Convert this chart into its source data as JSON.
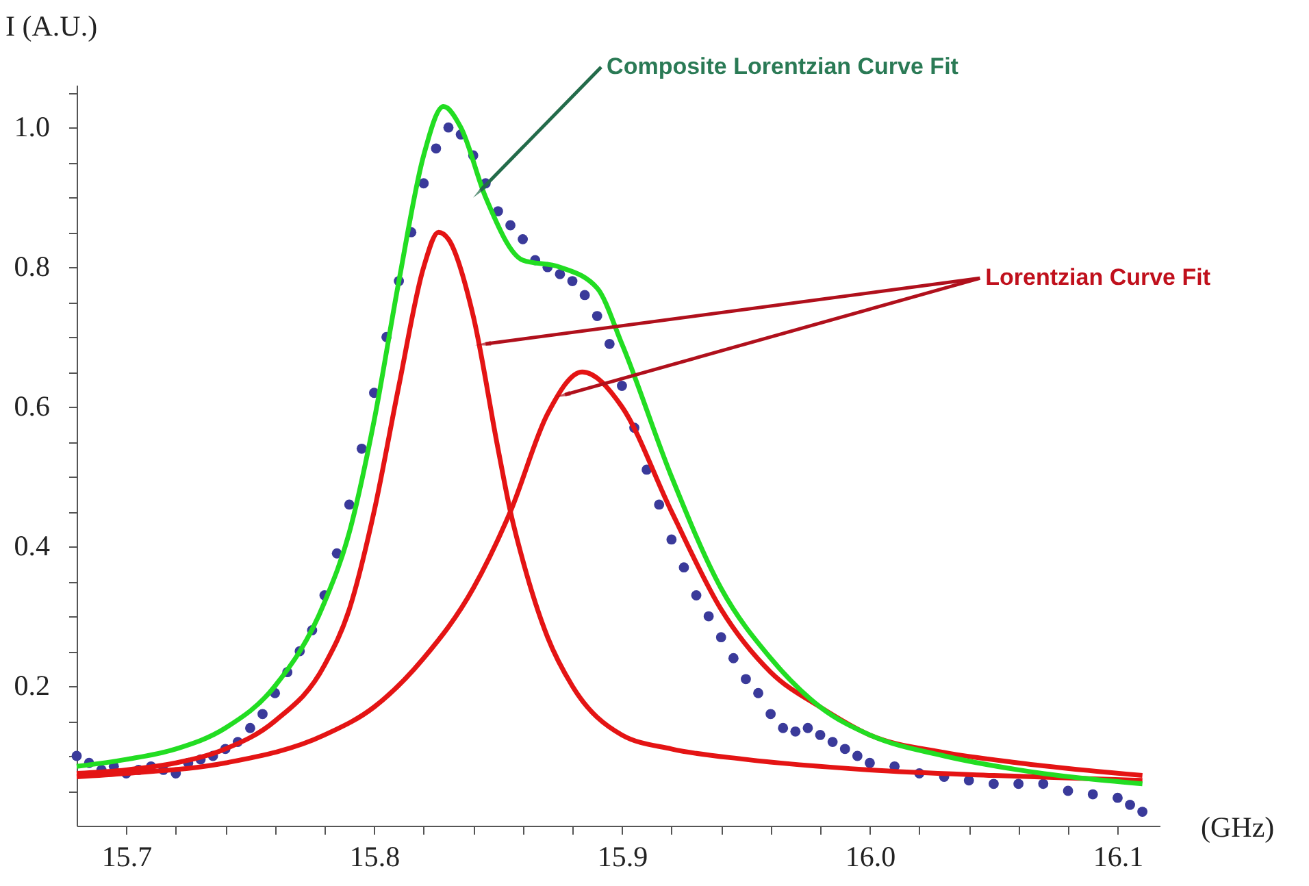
{
  "chart_data": {
    "type": "scatter",
    "ylabel": "I (A.U.)",
    "xlabel": "(GHz)",
    "xlim": [
      15.68,
      16.117
    ],
    "ylim": [
      0,
      1.061
    ],
    "xticks": [
      {
        "value": 15.7,
        "label": "15.7"
      },
      {
        "value": 15.72,
        "label": null
      },
      {
        "value": 15.74,
        "label": null
      },
      {
        "value": 15.76,
        "label": null
      },
      {
        "value": 15.78,
        "label": null
      },
      {
        "value": 15.8,
        "label": "15.8"
      },
      {
        "value": 15.82,
        "label": null
      },
      {
        "value": 15.84,
        "label": null
      },
      {
        "value": 15.86,
        "label": null
      },
      {
        "value": 15.88,
        "label": null
      },
      {
        "value": 15.9,
        "label": "15.9"
      },
      {
        "value": 15.92,
        "label": null
      },
      {
        "value": 15.94,
        "label": null
      },
      {
        "value": 15.96,
        "label": null
      },
      {
        "value": 15.98,
        "label": null
      },
      {
        "value": 16,
        "label": "16.0"
      },
      {
        "value": 16.02,
        "label": null
      },
      {
        "value": 16.04,
        "label": null
      },
      {
        "value": 16.06,
        "label": null
      },
      {
        "value": 16.08,
        "label": null
      },
      {
        "value": 16.1,
        "label": "16.1"
      }
    ],
    "yticks": [
      {
        "value": 0.05,
        "label": null
      },
      {
        "value": 0.1,
        "label": null
      },
      {
        "value": 0.15,
        "label": null
      },
      0.2,
      {
        "value": 0.25,
        "label": null
      },
      {
        "value": 0.3,
        "label": null
      },
      {
        "value": 0.35,
        "label": null
      },
      0.4,
      {
        "value": 0.45,
        "label": null
      },
      {
        "value": 0.5,
        "label": null
      },
      {
        "value": 0.55,
        "label": null
      },
      0.6,
      {
        "value": 0.65,
        "label": null
      },
      {
        "value": 0.7,
        "label": null
      },
      {
        "value": 0.75,
        "label": null
      },
      0.8,
      {
        "value": 0.85,
        "label": null
      },
      {
        "value": 0.9,
        "label": null
      },
      {
        "value": 0.95,
        "label": null
      },
      {
        "value": 1,
        "label": "1.0"
      },
      {
        "value": 1.05,
        "label": null
      }
    ],
    "grid": false,
    "series": [
      {
        "type": "scatter",
        "marker": "circle",
        "color": "#3a3a9a",
        "x": [
          15.68,
          15.685,
          15.69,
          15.695,
          15.7,
          15.705,
          15.71,
          15.715,
          15.72,
          15.725,
          15.73,
          15.735,
          15.74,
          15.745,
          15.75,
          15.755,
          15.76,
          15.765,
          15.77,
          15.775,
          15.78,
          15.785,
          15.79,
          15.795,
          15.8,
          15.805,
          15.81,
          15.815,
          15.82,
          15.825,
          15.83,
          15.835,
          15.84,
          15.845,
          15.85,
          15.855,
          15.86,
          15.865,
          15.87,
          15.875,
          15.88,
          15.885,
          15.89,
          15.895,
          15.9,
          15.905,
          15.91,
          15.915,
          15.92,
          15.925,
          15.93,
          15.935,
          15.94,
          15.945,
          15.95,
          15.955,
          15.96,
          15.965,
          15.97,
          15.975,
          15.98,
          15.985,
          15.99,
          15.995,
          16,
          16.01,
          16.02,
          16.03,
          16.04,
          16.05,
          16.06,
          16.07,
          16.08,
          16.09,
          16.1,
          16.105,
          16.11
        ],
        "values": [
          0.1,
          0.09,
          0.08,
          0.085,
          0.075,
          0.08,
          0.085,
          0.08,
          0.075,
          0.09,
          0.095,
          0.1,
          0.11,
          0.12,
          0.14,
          0.16,
          0.19,
          0.22,
          0.25,
          0.28,
          0.33,
          0.39,
          0.46,
          0.54,
          0.62,
          0.7,
          0.78,
          0.85,
          0.92,
          0.97,
          1.0,
          0.99,
          0.96,
          0.92,
          0.88,
          0.86,
          0.84,
          0.81,
          0.8,
          0.79,
          0.78,
          0.76,
          0.73,
          0.69,
          0.63,
          0.57,
          0.51,
          0.46,
          0.41,
          0.37,
          0.33,
          0.3,
          0.27,
          0.24,
          0.21,
          0.19,
          0.16,
          0.14,
          0.135,
          0.14,
          0.13,
          0.12,
          0.11,
          0.1,
          0.09,
          0.085,
          0.075,
          0.07,
          0.065,
          0.06,
          0.06,
          0.06,
          0.05,
          0.045,
          0.04,
          0.03,
          0.02
        ]
      },
      {
        "type": "line",
        "color": "#e41414",
        "x": [
          15.68,
          15.7,
          15.72,
          15.74,
          15.76,
          15.78,
          15.79,
          15.8,
          15.81,
          15.82,
          15.826,
          15.83,
          15.84,
          15.85,
          15.855,
          15.86,
          15.87,
          15.88,
          15.9,
          15.92,
          15.95,
          16,
          16.05,
          16.11
        ],
        "values": [
          0.075,
          0.08,
          0.09,
          0.11,
          0.15,
          0.23,
          0.31,
          0.45,
          0.63,
          0.8,
          0.85,
          0.84,
          0.73,
          0.54,
          0.45,
          0.38,
          0.27,
          0.2,
          0.13,
          0.11,
          0.095,
          0.08,
          0.072,
          0.065
        ]
      },
      {
        "type": "line",
        "color": "#e41414",
        "x": [
          15.68,
          15.7,
          15.74,
          15.78,
          15.8,
          15.82,
          15.84,
          15.855,
          15.87,
          15.884,
          15.9,
          15.92,
          15.94,
          15.96,
          15.98,
          16,
          16.03,
          16.06,
          16.11
        ],
        "values": [
          0.07,
          0.075,
          0.09,
          0.13,
          0.17,
          0.24,
          0.34,
          0.45,
          0.59,
          0.65,
          0.6,
          0.45,
          0.31,
          0.22,
          0.17,
          0.13,
          0.105,
          0.09,
          0.072
        ]
      },
      {
        "type": "line",
        "color": "#22dd22",
        "x": [
          15.68,
          15.7,
          15.72,
          15.74,
          15.76,
          15.78,
          15.79,
          15.8,
          15.81,
          15.82,
          15.828,
          15.835,
          15.845,
          15.86,
          15.875,
          15.89,
          15.9,
          15.92,
          15.94,
          15.96,
          15.98,
          16,
          16.03,
          16.06,
          16.11
        ],
        "values": [
          0.085,
          0.095,
          0.11,
          0.14,
          0.2,
          0.32,
          0.42,
          0.58,
          0.78,
          0.96,
          1.03,
          1.0,
          0.9,
          0.81,
          0.8,
          0.77,
          0.69,
          0.5,
          0.34,
          0.24,
          0.17,
          0.13,
          0.1,
          0.08,
          0.06
        ]
      }
    ],
    "annotations": [
      {
        "text": "Composite Lorentzian Curve Fit",
        "x": 15.843,
        "y": 0.91
      },
      {
        "text": "Lorentzian Curve Fit",
        "x": 15.845,
        "y": 0.69
      }
    ]
  }
}
